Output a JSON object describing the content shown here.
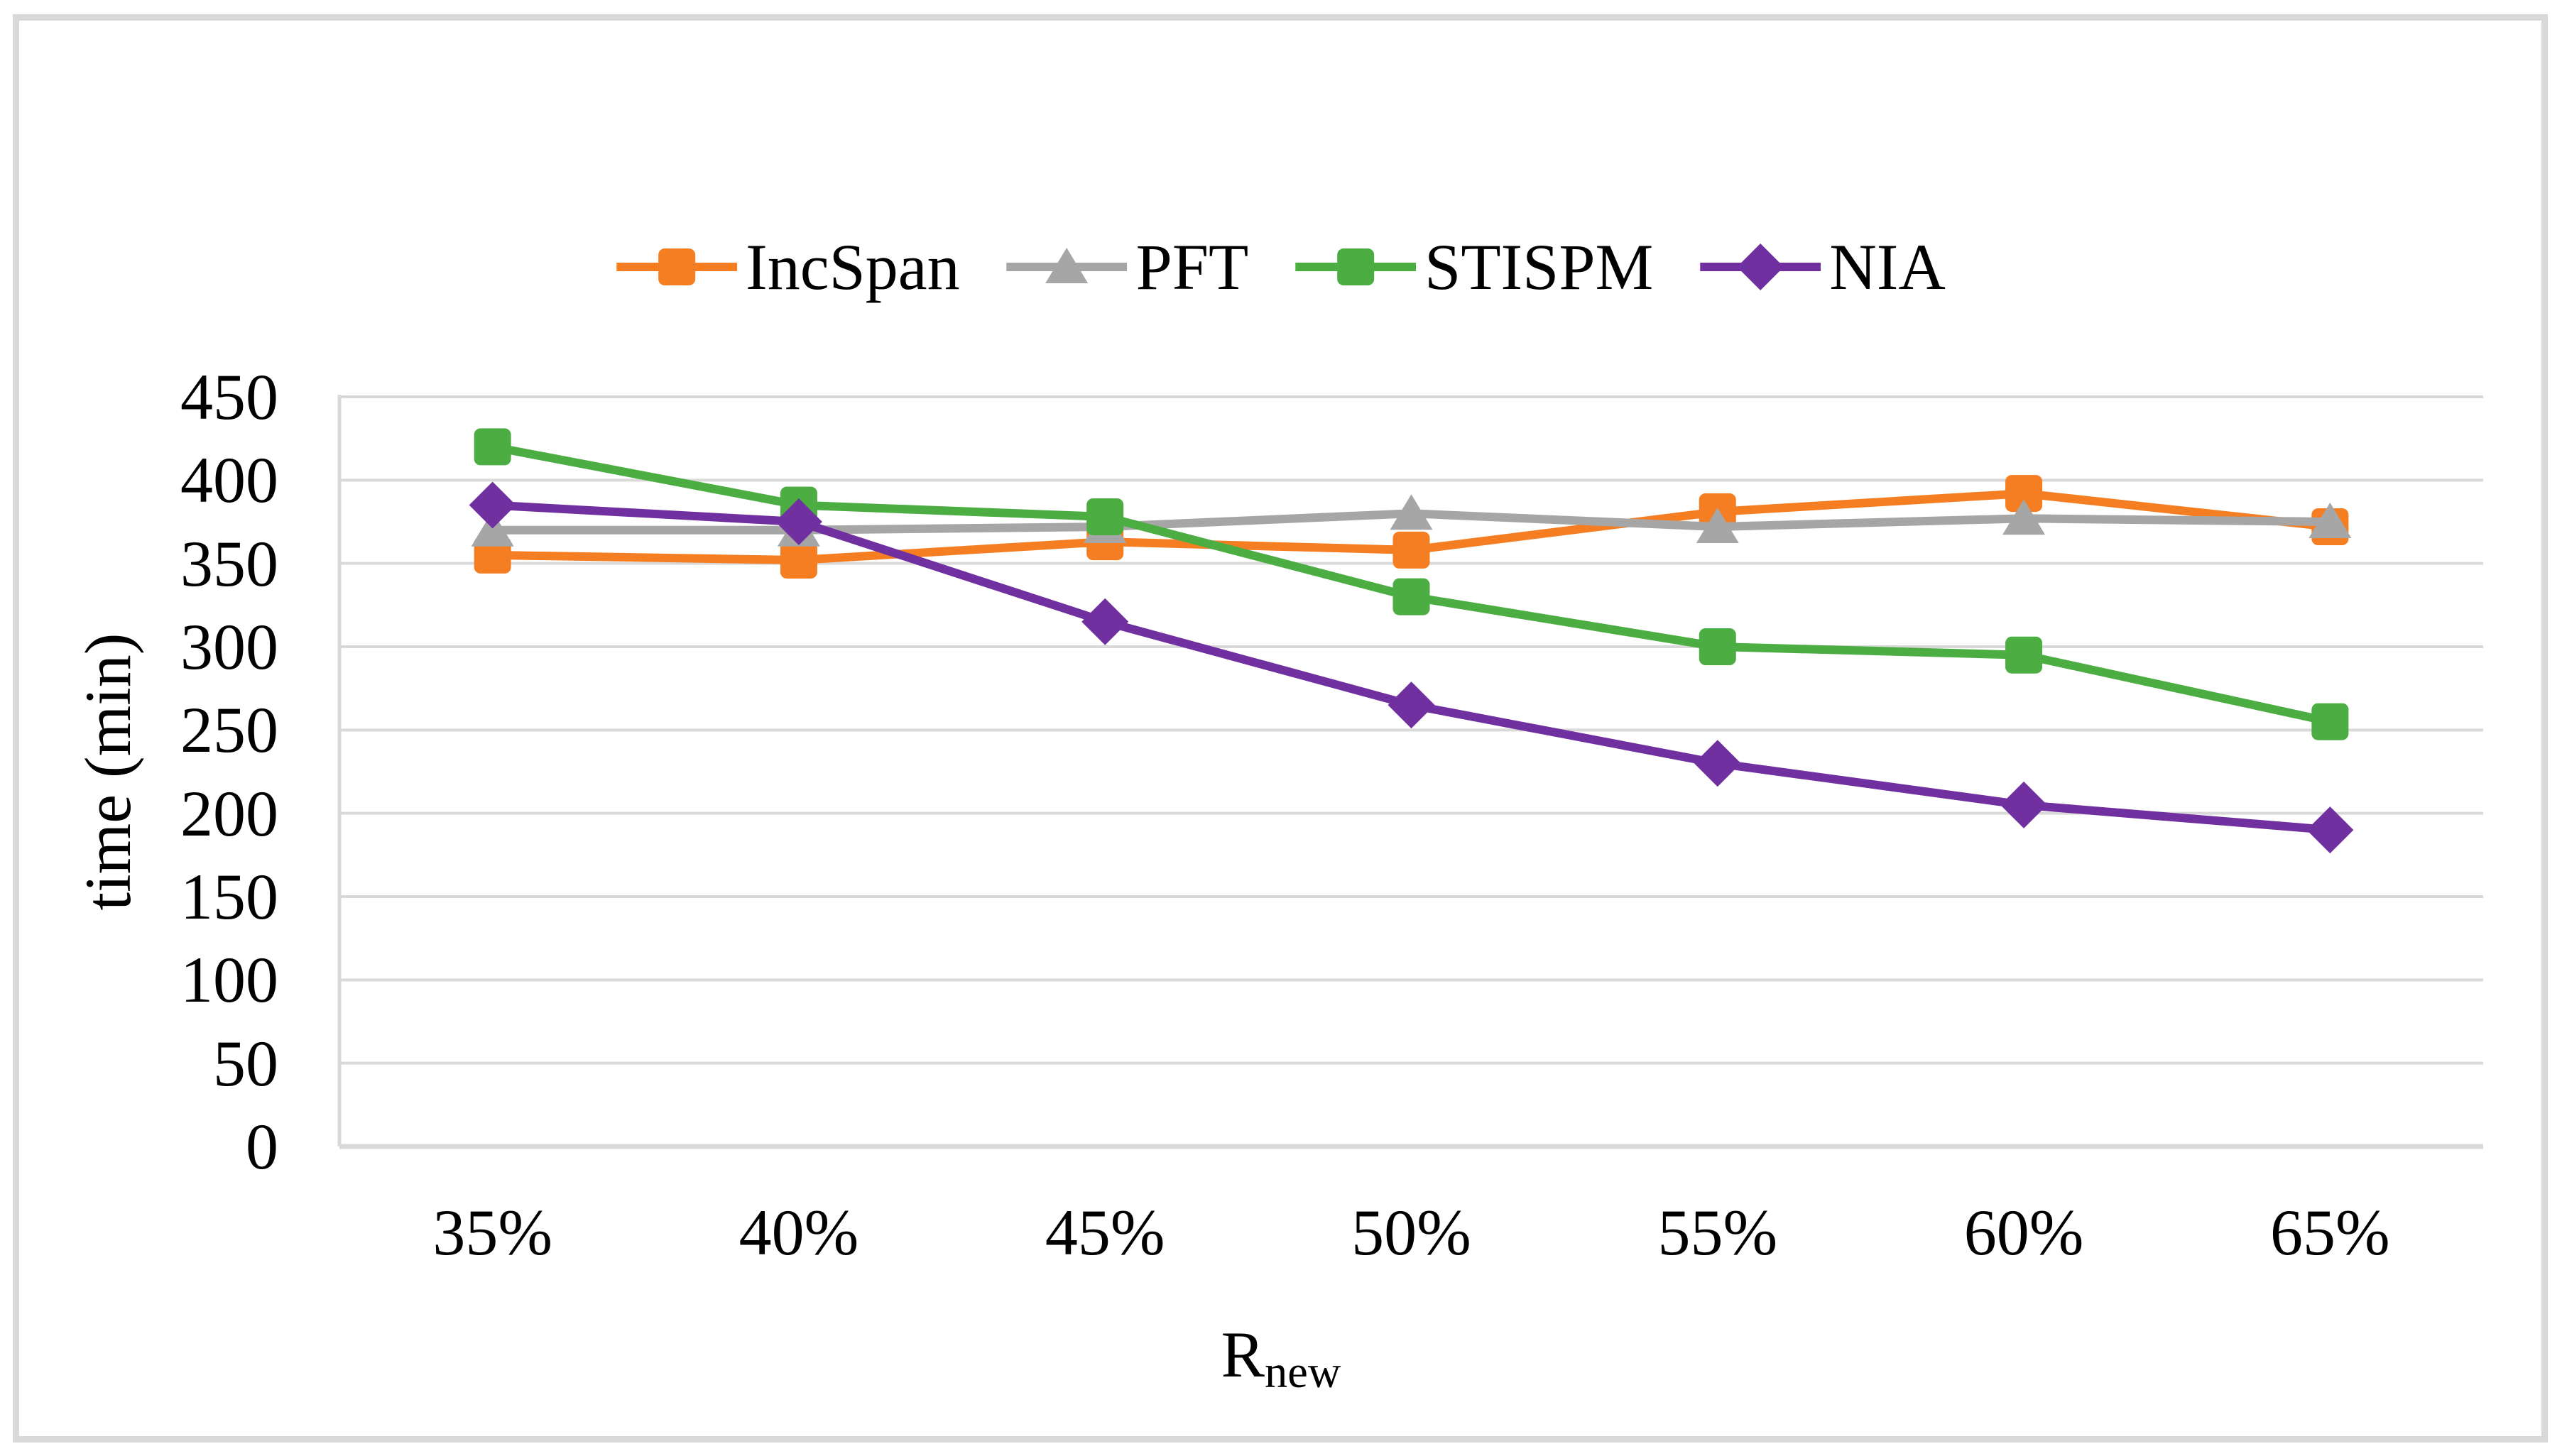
{
  "chart_data": {
    "type": "line",
    "categories": [
      "35%",
      "40%",
      "45%",
      "50%",
      "55%",
      "60%",
      "65%"
    ],
    "series": [
      {
        "name": "IncSpan",
        "color": "#F57E22",
        "marker": "square",
        "values": [
          355,
          352,
          363,
          358,
          381,
          392,
          372
        ]
      },
      {
        "name": "PFT",
        "color": "#A6A6A6",
        "marker": "triangle",
        "values": [
          370,
          370,
          372,
          380,
          372,
          377,
          375
        ]
      },
      {
        "name": "STISPM",
        "color": "#4CAD43",
        "marker": "square",
        "values": [
          420,
          385,
          378,
          330,
          300,
          295,
          255
        ]
      },
      {
        "name": "NIA",
        "color": "#7030A0",
        "marker": "diamond",
        "values": [
          385,
          375,
          315,
          265,
          230,
          205,
          190
        ]
      }
    ],
    "ylabel": "time (min)",
    "x_title": {
      "main": "R",
      "sub": "new"
    },
    "ylim": [
      0,
      450
    ],
    "yticks": [
      450,
      400,
      350,
      300,
      250,
      200,
      150,
      100,
      50,
      0
    ],
    "grid": true,
    "legend_position": "top",
    "colors": {
      "gridline": "#D9D9D9",
      "axis_line": "#D9D9D9",
      "frame": "#D9D9D9",
      "text": "#000000"
    }
  }
}
